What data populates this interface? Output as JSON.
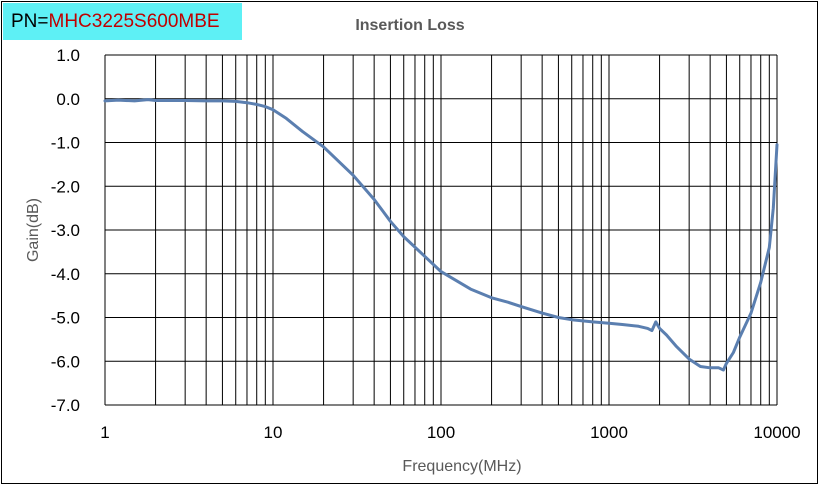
{
  "header": {
    "pn_prefix": "PN=",
    "pn_value": "MHC3225S600MBE"
  },
  "colors": {
    "series": "#5b7fb0",
    "grid": "#000000",
    "label_highlight": "#5ef0f5",
    "pn_text": "#c00000"
  },
  "chart_data": {
    "type": "line",
    "title": "Insertion Loss",
    "xlabel": "Frequency(MHz)",
    "ylabel": "Gain(dB)",
    "xscale": "log",
    "xlim": [
      1,
      10000
    ],
    "ylim": [
      -7.0,
      1.0
    ],
    "grid": true,
    "legend": "none",
    "x_tick_labels": [
      "1",
      "10",
      "100",
      "1000",
      "10000"
    ],
    "y_tick_labels": [
      "1.0",
      "0.0",
      "-1.0",
      "-2.0",
      "-3.0",
      "-4.0",
      "-5.0",
      "-6.0",
      "-7.0"
    ],
    "series": [
      {
        "x": [
          1,
          1.2,
          1.5,
          1.8,
          2,
          3,
          4,
          5,
          6,
          7,
          8,
          9,
          10,
          12,
          15,
          20,
          30,
          40,
          50,
          60,
          80,
          100,
          150,
          200,
          250,
          300,
          400,
          500,
          600,
          800,
          1000,
          1200,
          1500,
          1700,
          1800,
          1900,
          2000,
          2200,
          2500,
          3000,
          3500,
          4000,
          4500,
          4800,
          5000,
          5500,
          6000,
          7000,
          8000,
          9000,
          9500,
          10000
        ],
        "y": [
          -0.05,
          -0.03,
          -0.05,
          -0.02,
          -0.04,
          -0.04,
          -0.05,
          -0.05,
          -0.06,
          -0.09,
          -0.13,
          -0.18,
          -0.25,
          -0.45,
          -0.75,
          -1.1,
          -1.75,
          -2.3,
          -2.8,
          -3.15,
          -3.6,
          -3.95,
          -4.35,
          -4.55,
          -4.65,
          -4.75,
          -4.9,
          -5.0,
          -5.05,
          -5.1,
          -5.13,
          -5.16,
          -5.2,
          -5.25,
          -5.3,
          -5.1,
          -5.25,
          -5.4,
          -5.65,
          -5.95,
          -6.12,
          -6.15,
          -6.15,
          -6.2,
          -6.05,
          -5.8,
          -5.45,
          -4.9,
          -4.2,
          -3.4,
          -2.5,
          -1.05
        ]
      }
    ]
  }
}
